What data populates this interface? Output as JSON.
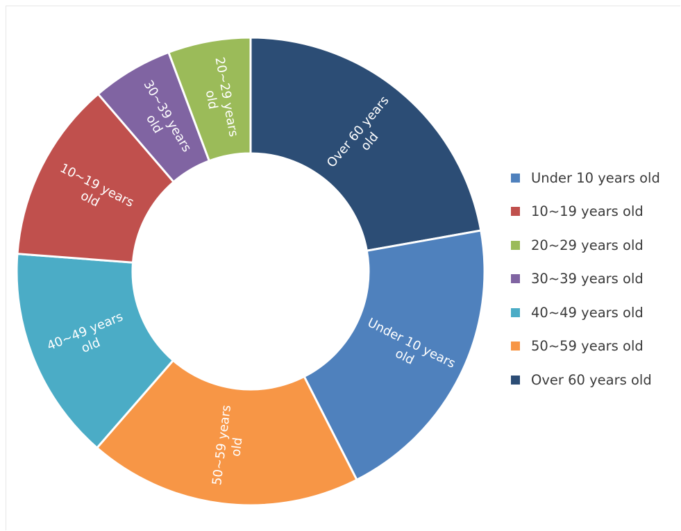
{
  "chart_data": {
    "type": "pie",
    "style": "donut",
    "categories": [
      "Under 10 years old",
      "10~19 years old",
      "20~29 years old",
      "30~39 years old",
      "40~49 years old",
      "50~59 years old",
      "Over 60 years old"
    ],
    "slice_order_clockwise_from_top": [
      "Over 60 years old",
      "Under 10 years old",
      "50~59 years old",
      "40~49 years old",
      "10~19 years old",
      "30~39 years old",
      "20~29 years old"
    ],
    "values": {
      "Over 60 years old": 22.2,
      "Under 10 years old": 20.3,
      "50~59 years old": 18.9,
      "40~49 years old": 14.8,
      "10~19 years old": 12.5,
      "30~39 years old": 5.6,
      "20~29 years old": 5.7
    },
    "slice_labels": {
      "Over 60 years old": [
        "Over 60 years",
        "old"
      ],
      "Under 10 years old": [
        "Under 10 years",
        "old"
      ],
      "50~59 years old": [
        "50~59 years",
        "old"
      ],
      "40~49 years old": [
        "40~49 years",
        "old"
      ],
      "10~19 years old": [
        "10~19 years",
        "old"
      ],
      "30~39 years old": [
        "30~39 years",
        "old"
      ],
      "20~29 years old": [
        "20~29 years",
        "old"
      ]
    },
    "colors": {
      "Under 10 years old": "#4F81BD",
      "10~19 years old": "#C0504D",
      "20~29 years old": "#9BBB59",
      "30~39 years old": "#8064A2",
      "40~49 years old": "#4BACC6",
      "50~59 years old": "#F79646",
      "Over 60 years old": "#2C4D75"
    },
    "legend_position": "right"
  }
}
